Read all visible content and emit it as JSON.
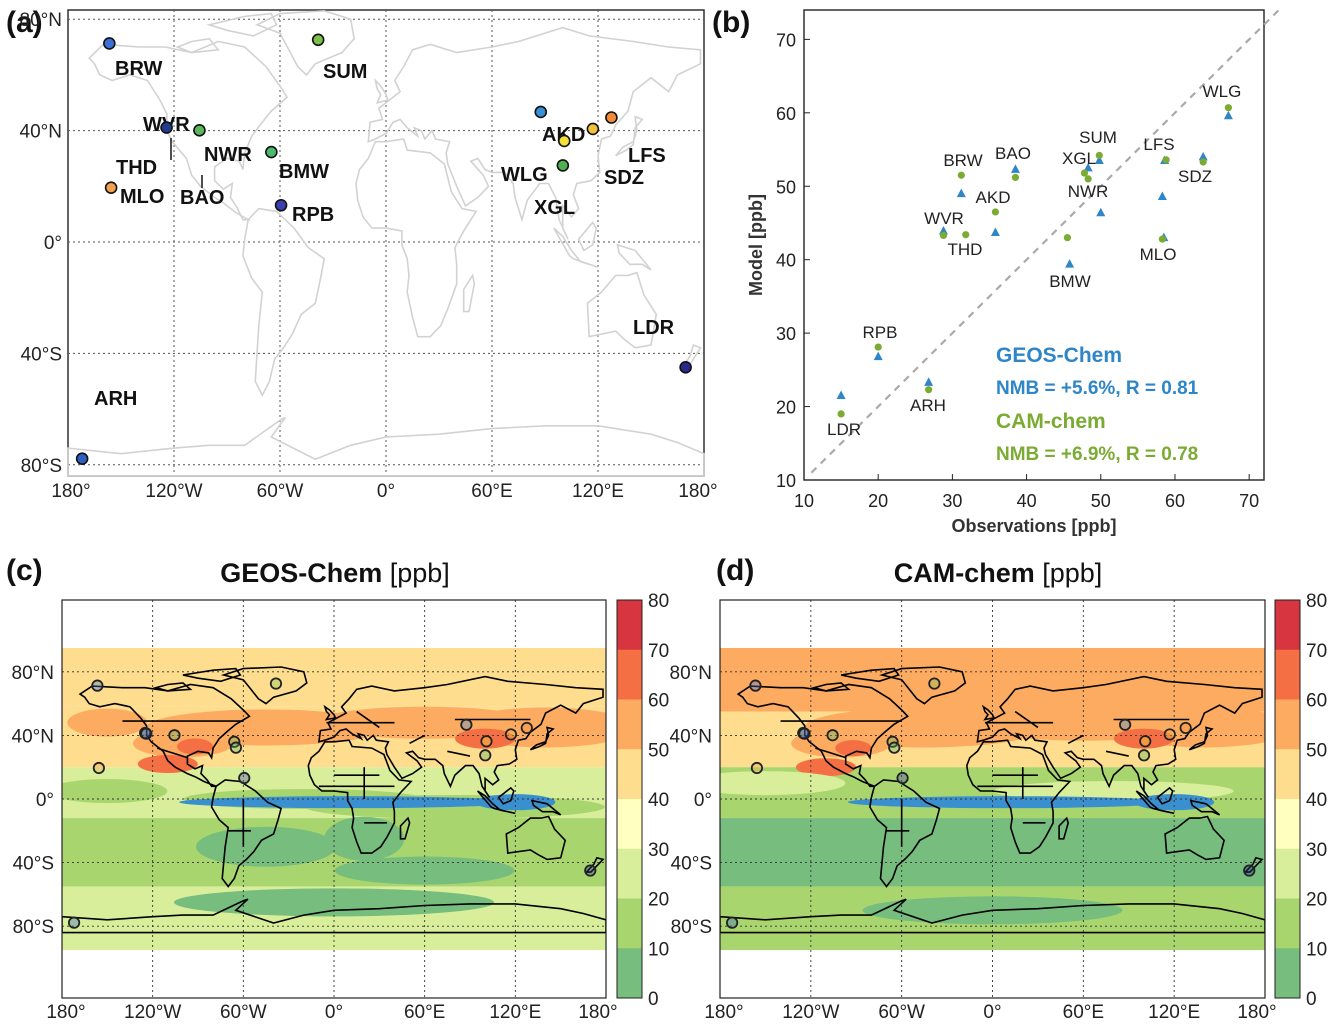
{
  "panels": {
    "a": {
      "letter": "(a)"
    },
    "b": {
      "letter": "(b)"
    },
    "c": {
      "letter": "(c)",
      "title_bold": "GEOS-Chem",
      "title_unit": "[ppb]"
    },
    "d": {
      "letter": "(d)",
      "title_bold": "CAM-chem",
      "title_unit": "[ppb]"
    }
  },
  "map_ticks": {
    "lon": [
      "180°",
      "120°W",
      "60°W",
      "0°",
      "60°E",
      "120°E",
      "180°"
    ],
    "lat": [
      "80°N",
      "40°N",
      "0°",
      "40°S",
      "80°S"
    ]
  },
  "colorbar": {
    "ticks": [
      "80",
      "70",
      "60",
      "50",
      "40",
      "30",
      "20",
      "10",
      "0"
    ],
    "colors": [
      "#d7353f",
      "#f46f44",
      "#fcab61",
      "#fedd8f",
      "#ffffbf",
      "#d8ee9b",
      "#a9d56f",
      "#76bd7e",
      "#3a8fcf"
    ]
  },
  "sites": [
    {
      "code": "BRW",
      "color": "#3b6fd6"
    },
    {
      "code": "SUM",
      "color": "#7cbf4a"
    },
    {
      "code": "WVR",
      "color": "#3a8fd6"
    },
    {
      "code": "THD",
      "color": "#223c8f"
    },
    {
      "code": "NWR",
      "color": "#5bb85a"
    },
    {
      "code": "BAO",
      "color": "#5bb85a"
    },
    {
      "code": "MLO",
      "color": "#f2a24e"
    },
    {
      "code": "BMW",
      "color": "#4fb870"
    },
    {
      "code": "RPB",
      "color": "#3b3fb0"
    },
    {
      "code": "AKD",
      "color": "#3a8fd6"
    },
    {
      "code": "WLG",
      "color": "#f3e13a"
    },
    {
      "code": "XGL",
      "color": "#4fb04f"
    },
    {
      "code": "LFS",
      "color": "#f28a3a"
    },
    {
      "code": "SDZ",
      "color": "#f2c13a"
    },
    {
      "code": "LDR",
      "color": "#2a2a8a"
    },
    {
      "code": "ARH",
      "color": "#2f5fc0"
    }
  ],
  "chart_data": {
    "type": "scatter",
    "xlabel": "Observations [ppb]",
    "ylabel": "Model [ppb]",
    "xlim": [
      10,
      72
    ],
    "ylim": [
      10,
      74
    ],
    "xticks": [
      10,
      20,
      30,
      40,
      50,
      60,
      70
    ],
    "yticks": [
      10,
      20,
      30,
      40,
      50,
      60,
      70
    ],
    "one_to_one_line": true,
    "series": [
      {
        "name": "GEOS-Chem",
        "marker": "triangle",
        "color": "#2e86c8",
        "stat": "NMB = +5.6%, R = 0.81",
        "points": [
          {
            "site": "LDR",
            "x": 15.0,
            "y": 21.5
          },
          {
            "site": "RPB",
            "x": 20.0,
            "y": 26.8
          },
          {
            "site": "ARH",
            "x": 26.8,
            "y": 23.3
          },
          {
            "site": "WVR",
            "x": 28.8,
            "y": 43.9
          },
          {
            "site": "BRW",
            "x": 31.2,
            "y": 49.0
          },
          {
            "site": "THD",
            "x": 35.8,
            "y": 43.7
          },
          {
            "site": "BAO",
            "x": 38.5,
            "y": 52.3
          },
          {
            "site": "BMW",
            "x": 45.8,
            "y": 39.4
          },
          {
            "site": "XGL",
            "x": 48.3,
            "y": 52.5
          },
          {
            "site": "NWR",
            "x": 50.0,
            "y": 46.4
          },
          {
            "site": "SUM",
            "x": 49.8,
            "y": 53.5
          },
          {
            "site": "LFS",
            "x": 58.6,
            "y": 53.5
          },
          {
            "site": "AKD",
            "x": 58.3,
            "y": 48.6
          },
          {
            "site": "SDZ",
            "x": 63.8,
            "y": 54.0
          },
          {
            "site": "MLO",
            "x": 58.5,
            "y": 43.0
          },
          {
            "site": "WLG",
            "x": 67.2,
            "y": 59.6
          }
        ]
      },
      {
        "name": "CAM-chem",
        "marker": "circle",
        "color": "#7bab32",
        "stat": "NMB = +6.9%, R = 0.78",
        "points": [
          {
            "site": "LDR",
            "x": 15.0,
            "y": 19.0
          },
          {
            "site": "RPB",
            "x": 20.0,
            "y": 28.1
          },
          {
            "site": "ARH",
            "x": 26.8,
            "y": 22.3
          },
          {
            "site": "WVR",
            "x": 28.8,
            "y": 43.3
          },
          {
            "site": "BRW",
            "x": 31.2,
            "y": 51.5
          },
          {
            "site": "THD",
            "x": 31.8,
            "y": 43.4
          },
          {
            "site": "AKD",
            "x": 35.8,
            "y": 46.5
          },
          {
            "site": "BAO",
            "x": 38.5,
            "y": 51.2
          },
          {
            "site": "BMW",
            "x": 45.5,
            "y": 43.0
          },
          {
            "site": "XGL",
            "x": 47.8,
            "y": 51.8
          },
          {
            "site": "NWR",
            "x": 48.3,
            "y": 51.0
          },
          {
            "site": "SUM",
            "x": 49.8,
            "y": 54.2
          },
          {
            "site": "LFS",
            "x": 58.8,
            "y": 53.6
          },
          {
            "site": "SDZ",
            "x": 63.8,
            "y": 53.3
          },
          {
            "site": "MLO",
            "x": 58.3,
            "y": 42.8
          },
          {
            "site": "WLG",
            "x": 67.2,
            "y": 60.7
          }
        ]
      }
    ]
  }
}
